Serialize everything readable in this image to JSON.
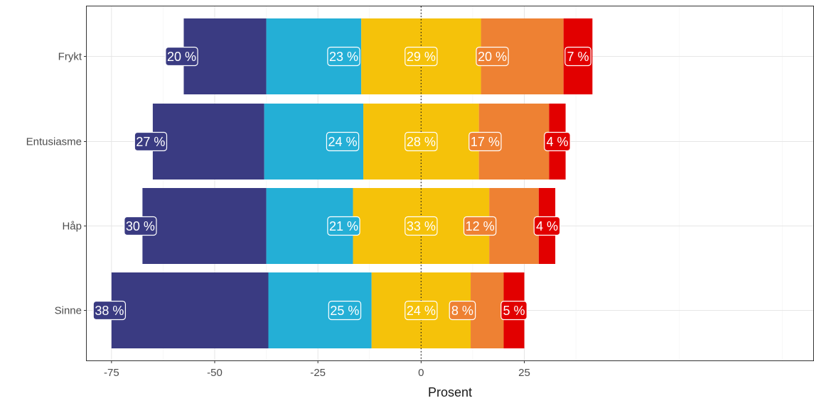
{
  "chart_data": {
    "type": "bar",
    "orientation": "horizontal",
    "stacking": "diverging",
    "xlabel": "Prosent",
    "ylabel": "",
    "xlim": [
      -81,
      95
    ],
    "x_ticks": [
      -75,
      -50,
      -25,
      0,
      25
    ],
    "x_tick_labels": [
      "-75",
      "-50",
      "-25",
      "0",
      "25"
    ],
    "reference_line": 0,
    "grid": true,
    "categories": [
      "Frykt",
      "Entusiasme",
      "Håp",
      "Sinne"
    ],
    "segments": [
      {
        "color": "#3a3b82",
        "values": [
          20,
          27,
          30,
          38
        ],
        "labels": [
          "20 %",
          "27 %",
          "30 %",
          "38 %"
        ]
      },
      {
        "color": "#24afd6",
        "values": [
          23,
          24,
          21,
          25
        ],
        "labels": [
          "23 %",
          "24 %",
          "21 %",
          "25 %"
        ]
      },
      {
        "color": "#f5c20a",
        "values": [
          29,
          28,
          33,
          24
        ],
        "labels": [
          "29 %",
          "28 %",
          "33 %",
          "24 %"
        ]
      },
      {
        "color": "#ee8133",
        "values": [
          20,
          17,
          12,
          8
        ],
        "labels": [
          "20 %",
          "17 %",
          "12 %",
          "8 %"
        ]
      },
      {
        "color": "#e20000",
        "values": [
          7,
          4,
          4,
          5
        ],
        "labels": [
          "7 %",
          "4 %",
          "4 %",
          "5 %"
        ]
      }
    ]
  }
}
